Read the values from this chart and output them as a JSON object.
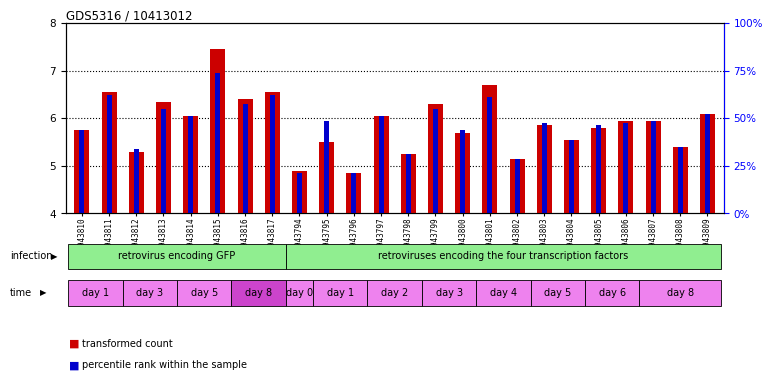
{
  "title": "GDS5316 / 10413012",
  "samples": [
    "GSM943810",
    "GSM943811",
    "GSM943812",
    "GSM943813",
    "GSM943814",
    "GSM943815",
    "GSM943816",
    "GSM943817",
    "GSM943794",
    "GSM943795",
    "GSM943796",
    "GSM943797",
    "GSM943798",
    "GSM943799",
    "GSM943800",
    "GSM943801",
    "GSM943802",
    "GSM943803",
    "GSM943804",
    "GSM943805",
    "GSM943806",
    "GSM943807",
    "GSM943808",
    "GSM943809"
  ],
  "red_values": [
    5.75,
    6.55,
    5.3,
    6.35,
    6.05,
    7.45,
    6.4,
    6.55,
    4.9,
    5.5,
    4.85,
    6.05,
    5.25,
    6.3,
    5.7,
    6.7,
    5.15,
    5.85,
    5.55,
    5.8,
    5.95,
    5.95,
    5.4,
    6.1
  ],
  "blue_values": [
    5.75,
    6.5,
    5.35,
    6.2,
    6.05,
    6.95,
    6.3,
    6.5,
    4.85,
    5.95,
    4.85,
    6.05,
    5.25,
    6.2,
    5.75,
    6.45,
    5.15,
    5.9,
    5.55,
    5.85,
    5.9,
    5.95,
    5.4,
    6.1
  ],
  "ylim": [
    4,
    8
  ],
  "red_color": "#CC0000",
  "blue_color": "#0000CC",
  "bar_width": 0.55,
  "blue_bar_width": 0.18,
  "infection_label": "infection",
  "time_label": "time",
  "gfp_label": "retrovirus encoding GFP",
  "factors_label": "retroviruses encoding the four transcription factors",
  "gfp_color": "#90EE90",
  "factors_color": "#90EE90",
  "time_colors": {
    "day1_gfp": "#EE82EE",
    "day3_gfp": "#EE82EE",
    "day5_gfp": "#EE82EE",
    "day8_gfp": "#CC44CC",
    "default": "#EE82EE"
  },
  "legend_red": "transformed count",
  "legend_blue": "percentile rank within the sample"
}
